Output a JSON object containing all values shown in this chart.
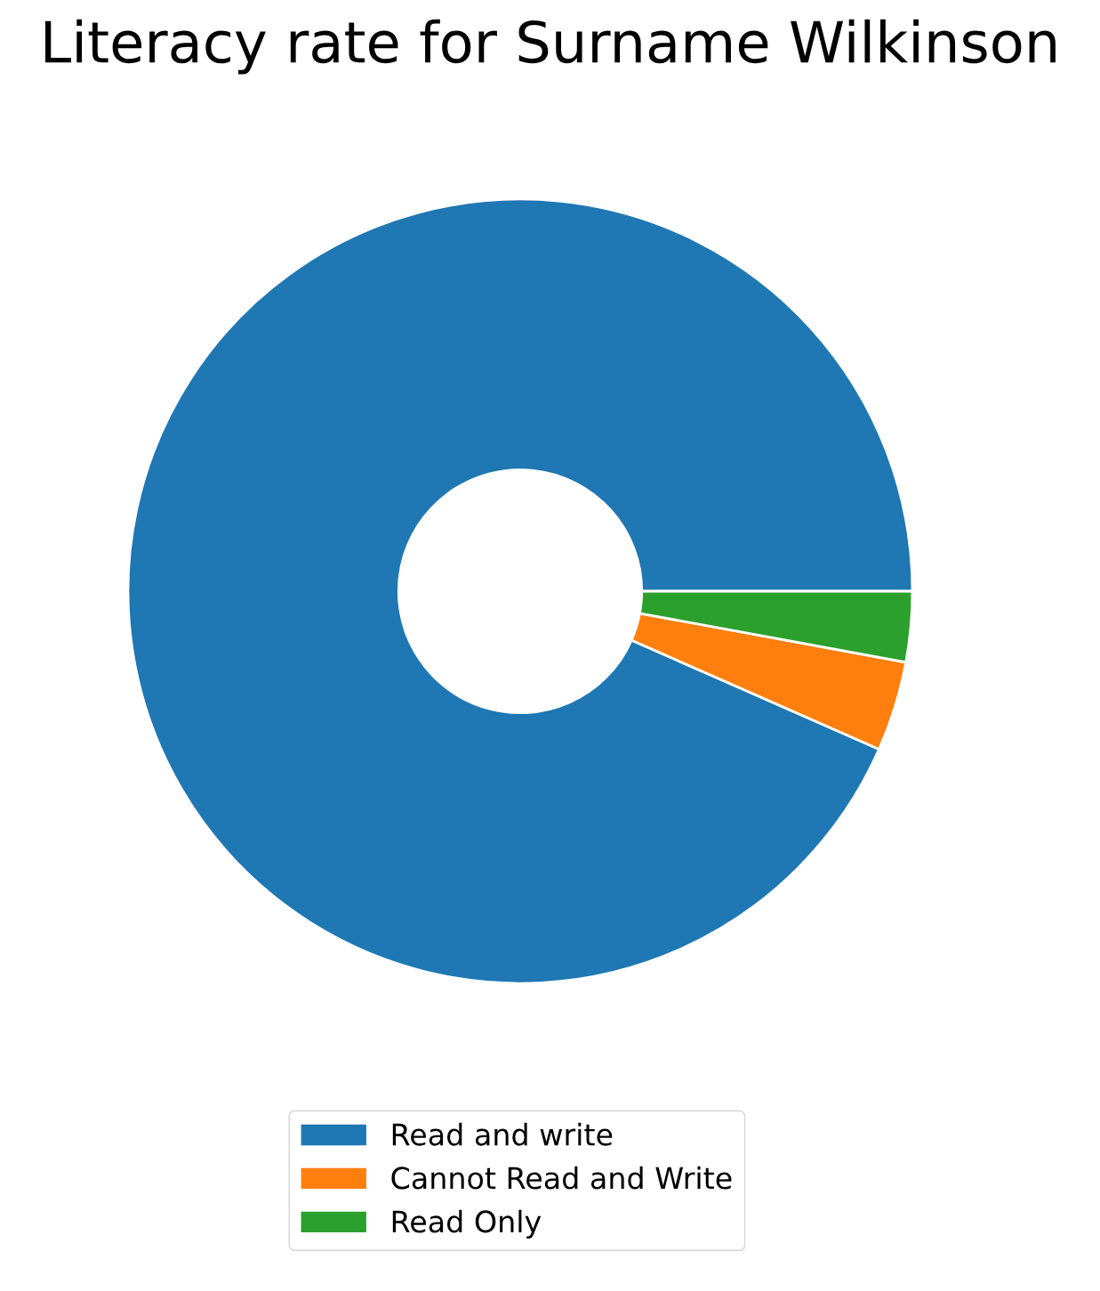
{
  "chart_data": {
    "type": "donut",
    "title": "Literacy rate for Surname Wilkinson",
    "categories": [
      "Read and write",
      "Cannot Read and Write",
      "Read Only"
    ],
    "values": [
      93.4,
      3.7,
      2.9
    ],
    "colors": [
      "#1f77b4",
      "#ff7f0e",
      "#2ca02c"
    ],
    "legend": "bottom"
  }
}
